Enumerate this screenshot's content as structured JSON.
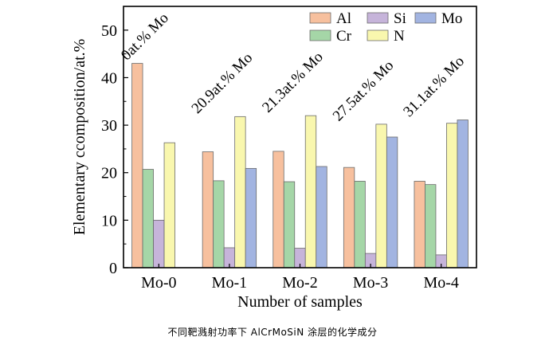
{
  "chart_data": {
    "type": "bar",
    "categories": [
      "Mo-0",
      "Mo-1",
      "Mo-2",
      "Mo-3",
      "Mo-4"
    ],
    "series": [
      {
        "name": "Al",
        "values": [
          43.0,
          24.4,
          24.5,
          21.1,
          18.2
        ],
        "color": "#F7C09E"
      },
      {
        "name": "Cr",
        "values": [
          20.7,
          18.3,
          18.1,
          18.2,
          17.5
        ],
        "color": "#A5D6A7"
      },
      {
        "name": "Si",
        "values": [
          10.0,
          4.2,
          4.1,
          3.0,
          2.7
        ],
        "color": "#C6B4DA"
      },
      {
        "name": "N",
        "values": [
          26.3,
          31.8,
          32.0,
          30.2,
          30.4
        ],
        "color": "#F9F7AE"
      },
      {
        "name": "Mo",
        "values": [
          0,
          20.9,
          21.3,
          27.5,
          31.1
        ],
        "color": "#A2B4E1"
      }
    ],
    "annotations": [
      "0at.% Mo",
      "20.9at.% Mo",
      "21.3at.% Mo",
      "27.5at.% Mo",
      "31.1at.% Mo"
    ],
    "xlabel": "Number of samples",
    "ylabel": "Elementary ccomposition/at.%",
    "ylim": [
      0,
      55
    ],
    "yticks": [
      0,
      10,
      20,
      30,
      40,
      50
    ],
    "legend_position": "top-right",
    "grid": false
  },
  "caption": "不同靶溅射功率下 AlCrMoSiN 涂层的化学成分"
}
